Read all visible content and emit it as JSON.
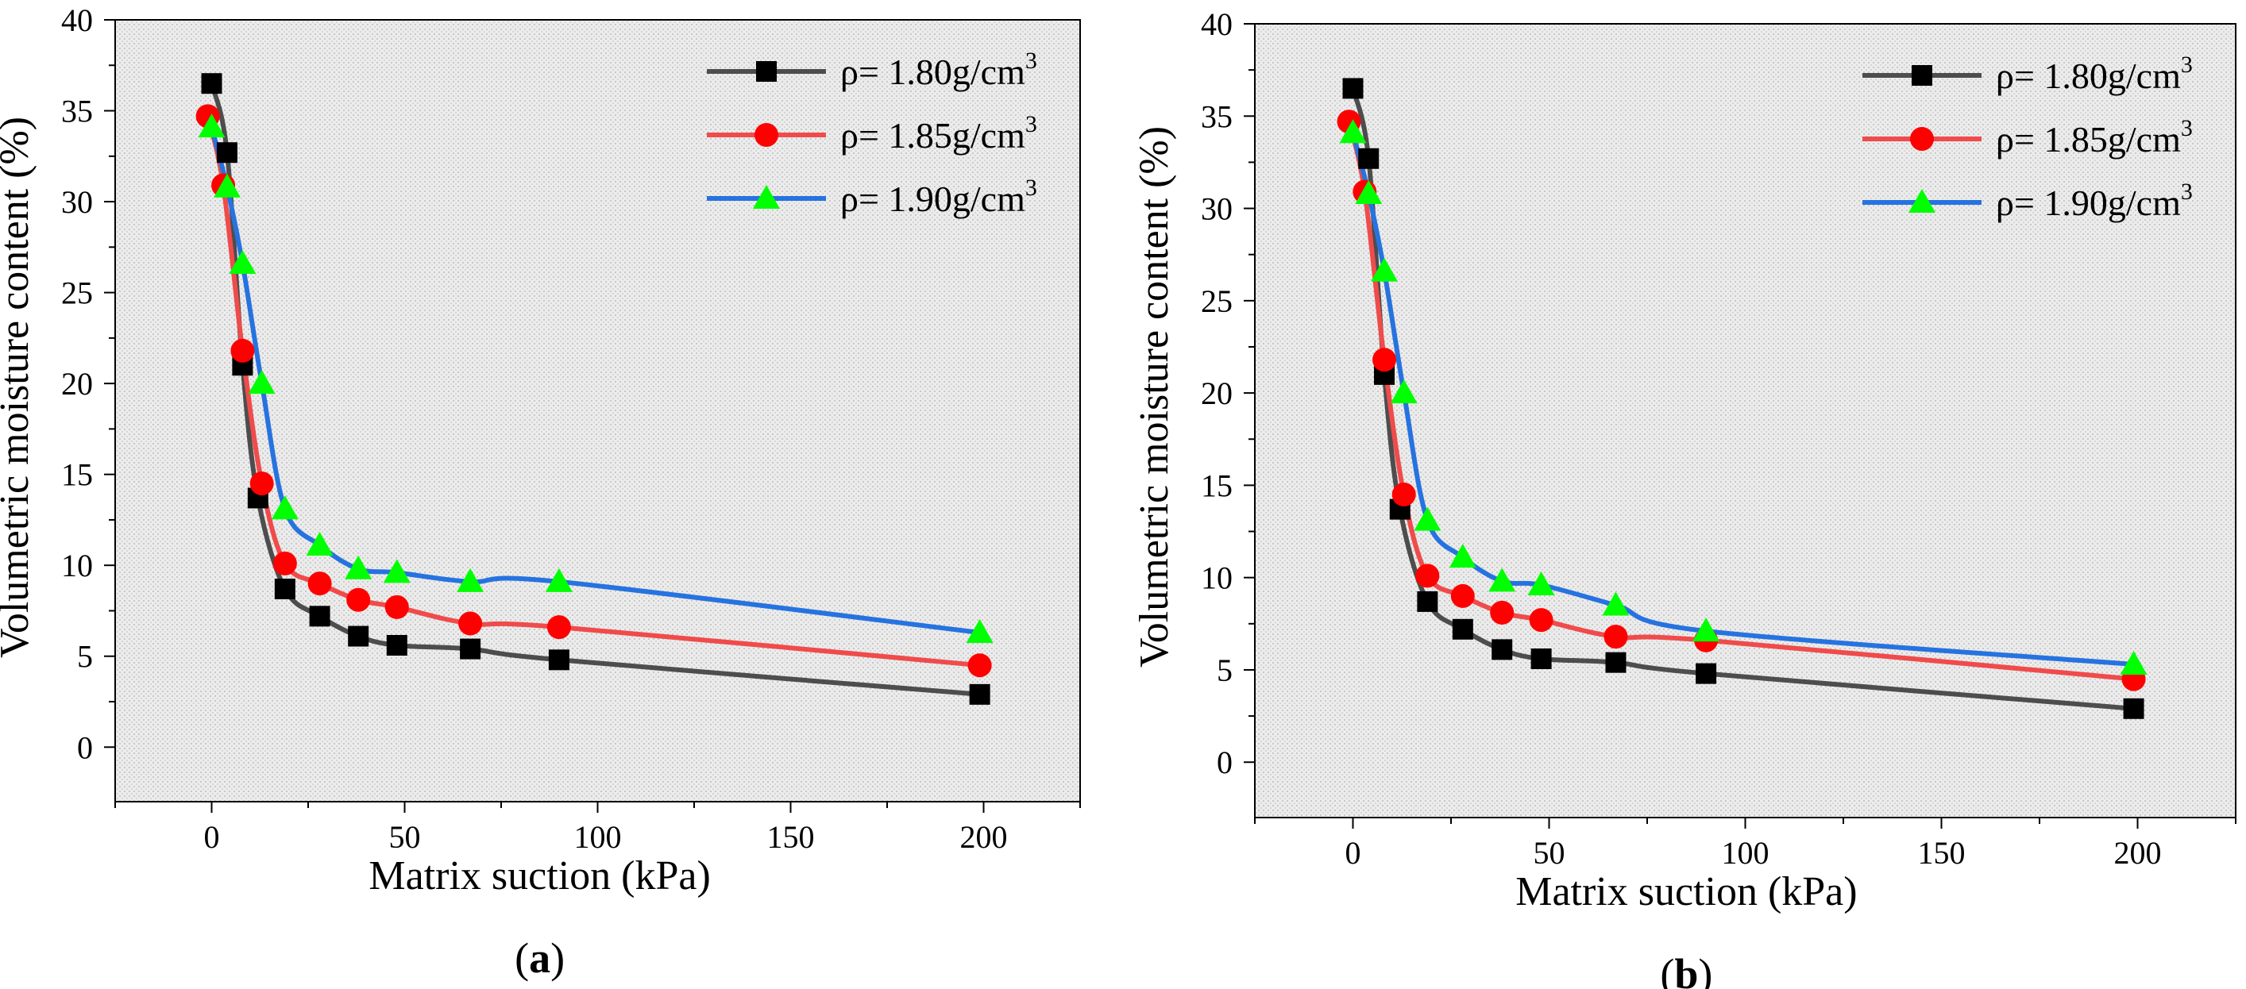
{
  "chart_data": [
    {
      "type": "line",
      "panel_label": "a",
      "title": "",
      "xlabel": "Matrix suction (kPa)",
      "ylabel": "Volumetric moisture content (%)",
      "xlim": [
        -25,
        225
      ],
      "ylim": [
        -3,
        40
      ],
      "xticks": [
        0,
        50,
        100,
        150,
        200
      ],
      "yticks": [
        0,
        5,
        10,
        15,
        20,
        25,
        30,
        35,
        40
      ],
      "legend_position": "top-right",
      "series": [
        {
          "name": "ρ= 1.80g/cm",
          "sup": "3",
          "color": "#4d4d4d",
          "marker": "square",
          "marker_color": "#000000",
          "x": [
            0,
            4,
            8,
            12,
            19,
            28,
            38,
            48,
            67,
            90,
            199
          ],
          "y": [
            36.5,
            32.7,
            21,
            13.7,
            8.7,
            7.2,
            6.1,
            5.6,
            5.4,
            4.8,
            2.9
          ]
        },
        {
          "name": "ρ= 1.85g/cm",
          "sup": "3",
          "color": "#f04b4b",
          "marker": "circle",
          "marker_color": "#ff0000",
          "x": [
            -1,
            3,
            8,
            13,
            19,
            28,
            38,
            48,
            67,
            90,
            199
          ],
          "y": [
            34.7,
            30.9,
            21.8,
            14.5,
            10.1,
            9,
            8.1,
            7.7,
            6.8,
            6.6,
            4.5
          ]
        },
        {
          "name": "ρ= 1.90g/cm",
          "sup": "3",
          "color": "#2673e0",
          "marker": "triangle",
          "marker_color": "#00ff00",
          "x": [
            0,
            4,
            8,
            13,
            19,
            28,
            38,
            48,
            67,
            90,
            199
          ],
          "y": [
            34.1,
            30.8,
            26.6,
            20,
            13.1,
            11.1,
            9.8,
            9.6,
            9.1,
            9.1,
            6.3
          ]
        }
      ]
    },
    {
      "type": "line",
      "panel_label": "b",
      "title": "",
      "xlabel": "Matrix suction (kPa)",
      "ylabel": "Volumetric moisture content (%)",
      "xlim": [
        -25,
        225
      ],
      "ylim": [
        -3,
        40
      ],
      "xticks": [
        0,
        50,
        100,
        150,
        200
      ],
      "yticks": [
        0,
        5,
        10,
        15,
        20,
        25,
        30,
        35,
        40
      ],
      "legend_position": "top-right",
      "series": [
        {
          "name": "ρ= 1.80g/cm",
          "sup": "3",
          "color": "#4d4d4d",
          "marker": "square",
          "marker_color": "#000000",
          "x": [
            0,
            4,
            8,
            12,
            19,
            28,
            38,
            48,
            67,
            90,
            199
          ],
          "y": [
            36.5,
            32.7,
            21,
            13.7,
            8.7,
            7.2,
            6.1,
            5.6,
            5.4,
            4.8,
            2.9
          ]
        },
        {
          "name": "ρ= 1.85g/cm",
          "sup": "3",
          "color": "#f04b4b",
          "marker": "circle",
          "marker_color": "#ff0000",
          "x": [
            -1,
            3,
            8,
            13,
            19,
            28,
            38,
            48,
            67,
            90,
            199
          ],
          "y": [
            34.7,
            30.9,
            21.8,
            14.5,
            10.1,
            9,
            8.1,
            7.7,
            6.8,
            6.6,
            4.5
          ]
        },
        {
          "name": "ρ= 1.90g/cm",
          "sup": "3",
          "color": "#2673e0",
          "marker": "triangle",
          "marker_color": "#00ff00",
          "x": [
            0,
            4,
            8,
            13,
            19,
            28,
            38,
            48,
            67,
            90,
            199
          ],
          "y": [
            34.1,
            30.8,
            26.6,
            20,
            13.1,
            11.1,
            9.8,
            9.6,
            8.5,
            7.1,
            5.3
          ]
        }
      ]
    }
  ]
}
